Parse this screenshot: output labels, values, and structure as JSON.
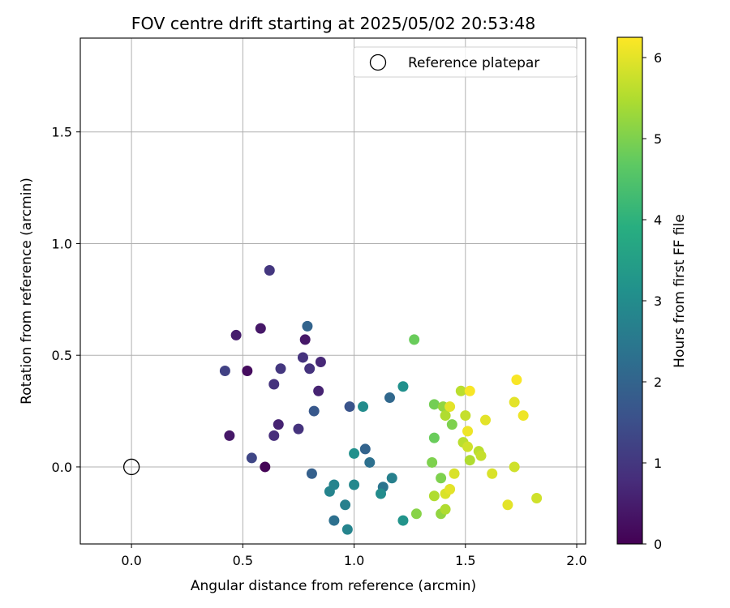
{
  "chart_data": {
    "type": "scatter",
    "title": "FOV centre drift starting at 2025/05/02 20:53:48",
    "xlabel": "Angular distance from reference (arcmin)",
    "ylabel": "Rotation from reference (arcmin)",
    "xlim": [
      -0.23,
      2.04
    ],
    "ylim": [
      -0.345,
      1.92
    ],
    "x_ticks": [
      0.0,
      0.5,
      1.0,
      1.5,
      2.0
    ],
    "x_tick_labels": [
      "0.0",
      "0.5",
      "1.0",
      "1.5",
      "2.0"
    ],
    "y_ticks": [
      0.0,
      0.5,
      1.0,
      1.5
    ],
    "y_tick_labels": [
      "0.0",
      "0.5",
      "1.0",
      "1.5"
    ],
    "grid": true,
    "legend": {
      "placement": "top-right",
      "entries": [
        {
          "label": "Reference platepar",
          "marker": "open-circle"
        }
      ]
    },
    "reference_point": {
      "x": 0.0,
      "y": 0.0
    },
    "colorbar": {
      "label": "Hours from first FF file",
      "colormap": "viridis",
      "range": [
        0,
        6.25
      ],
      "ticks": [
        0,
        1,
        2,
        3,
        4,
        5,
        6
      ],
      "tick_labels": [
        "0",
        "1",
        "2",
        "3",
        "4",
        "5",
        "6"
      ]
    },
    "points": [
      {
        "x": 0.6,
        "y": 0.0,
        "hours": 0.05
      },
      {
        "x": 0.52,
        "y": 0.43,
        "hours": 0.2
      },
      {
        "x": 0.44,
        "y": 0.14,
        "hours": 0.4
      },
      {
        "x": 0.47,
        "y": 0.59,
        "hours": 0.5
      },
      {
        "x": 0.58,
        "y": 0.62,
        "hours": 0.4
      },
      {
        "x": 0.78,
        "y": 0.57,
        "hours": 0.4
      },
      {
        "x": 0.84,
        "y": 0.34,
        "hours": 0.6
      },
      {
        "x": 0.66,
        "y": 0.19,
        "hours": 0.6
      },
      {
        "x": 0.85,
        "y": 0.47,
        "hours": 0.7
      },
      {
        "x": 0.64,
        "y": 0.14,
        "hours": 0.8
      },
      {
        "x": 0.75,
        "y": 0.17,
        "hours": 0.9
      },
      {
        "x": 0.64,
        "y": 0.37,
        "hours": 0.9
      },
      {
        "x": 0.77,
        "y": 0.49,
        "hours": 0.9
      },
      {
        "x": 0.8,
        "y": 0.44,
        "hours": 0.9
      },
      {
        "x": 0.62,
        "y": 0.88,
        "hours": 1.0
      },
      {
        "x": 0.67,
        "y": 0.44,
        "hours": 1.0
      },
      {
        "x": 0.42,
        "y": 0.43,
        "hours": 1.2
      },
      {
        "x": 0.54,
        "y": 0.04,
        "hours": 1.3
      },
      {
        "x": 0.98,
        "y": 0.27,
        "hours": 1.6
      },
      {
        "x": 0.82,
        "y": 0.25,
        "hours": 1.7
      },
      {
        "x": 0.81,
        "y": -0.03,
        "hours": 1.9
      },
      {
        "x": 0.79,
        "y": 0.63,
        "hours": 2.0
      },
      {
        "x": 1.05,
        "y": 0.08,
        "hours": 2.0
      },
      {
        "x": 1.16,
        "y": 0.31,
        "hours": 2.1
      },
      {
        "x": 0.91,
        "y": -0.24,
        "hours": 2.3
      },
      {
        "x": 1.07,
        "y": 0.02,
        "hours": 2.3
      },
      {
        "x": 1.13,
        "y": -0.09,
        "hours": 2.4
      },
      {
        "x": 1.17,
        "y": -0.05,
        "hours": 2.7
      },
      {
        "x": 0.96,
        "y": -0.17,
        "hours": 2.7
      },
      {
        "x": 0.97,
        "y": -0.28,
        "hours": 2.8
      },
      {
        "x": 0.89,
        "y": -0.11,
        "hours": 2.8
      },
      {
        "x": 0.91,
        "y": -0.08,
        "hours": 2.8
      },
      {
        "x": 1.0,
        "y": -0.08,
        "hours": 2.9
      },
      {
        "x": 1.04,
        "y": 0.27,
        "hours": 3.0
      },
      {
        "x": 1.12,
        "y": -0.12,
        "hours": 3.0
      },
      {
        "x": 1.0,
        "y": 0.06,
        "hours": 3.1
      },
      {
        "x": 1.22,
        "y": 0.36,
        "hours": 3.1
      },
      {
        "x": 1.22,
        "y": -0.24,
        "hours": 3.2
      },
      {
        "x": 1.36,
        "y": 0.13,
        "hours": 4.8
      },
      {
        "x": 1.27,
        "y": 0.57,
        "hours": 4.8
      },
      {
        "x": 1.36,
        "y": 0.28,
        "hours": 4.9
      },
      {
        "x": 1.35,
        "y": 0.02,
        "hours": 5.0
      },
      {
        "x": 1.39,
        "y": -0.05,
        "hours": 5.0
      },
      {
        "x": 1.44,
        "y": 0.19,
        "hours": 5.0
      },
      {
        "x": 1.28,
        "y": -0.21,
        "hours": 5.1
      },
      {
        "x": 1.39,
        "y": -0.21,
        "hours": 5.2
      },
      {
        "x": 1.4,
        "y": 0.27,
        "hours": 5.2
      },
      {
        "x": 1.41,
        "y": -0.19,
        "hours": 5.5
      },
      {
        "x": 1.36,
        "y": -0.13,
        "hours": 5.5
      },
      {
        "x": 1.41,
        "y": 0.23,
        "hours": 5.5
      },
      {
        "x": 1.48,
        "y": 0.34,
        "hours": 5.6
      },
      {
        "x": 1.49,
        "y": 0.11,
        "hours": 5.6
      },
      {
        "x": 1.5,
        "y": 0.23,
        "hours": 5.7
      },
      {
        "x": 1.52,
        "y": 0.03,
        "hours": 5.5
      },
      {
        "x": 1.56,
        "y": 0.07,
        "hours": 5.6
      },
      {
        "x": 1.57,
        "y": 0.05,
        "hours": 5.7
      },
      {
        "x": 1.51,
        "y": 0.09,
        "hours": 5.8
      },
      {
        "x": 1.41,
        "y": -0.12,
        "hours": 5.9
      },
      {
        "x": 1.43,
        "y": -0.1,
        "hours": 6.0
      },
      {
        "x": 1.45,
        "y": -0.03,
        "hours": 5.9
      },
      {
        "x": 1.43,
        "y": 0.27,
        "hours": 6.0
      },
      {
        "x": 1.51,
        "y": 0.16,
        "hours": 6.1
      },
      {
        "x": 1.52,
        "y": 0.34,
        "hours": 6.2
      },
      {
        "x": 1.59,
        "y": 0.21,
        "hours": 6.0
      },
      {
        "x": 1.62,
        "y": -0.03,
        "hours": 5.9
      },
      {
        "x": 1.69,
        "y": -0.17,
        "hours": 6.0
      },
      {
        "x": 1.72,
        "y": 0.0,
        "hours": 5.8
      },
      {
        "x": 1.72,
        "y": 0.29,
        "hours": 6.0
      },
      {
        "x": 1.73,
        "y": 0.39,
        "hours": 6.2
      },
      {
        "x": 1.76,
        "y": 0.23,
        "hours": 6.1
      },
      {
        "x": 1.82,
        "y": -0.14,
        "hours": 5.8
      }
    ]
  }
}
